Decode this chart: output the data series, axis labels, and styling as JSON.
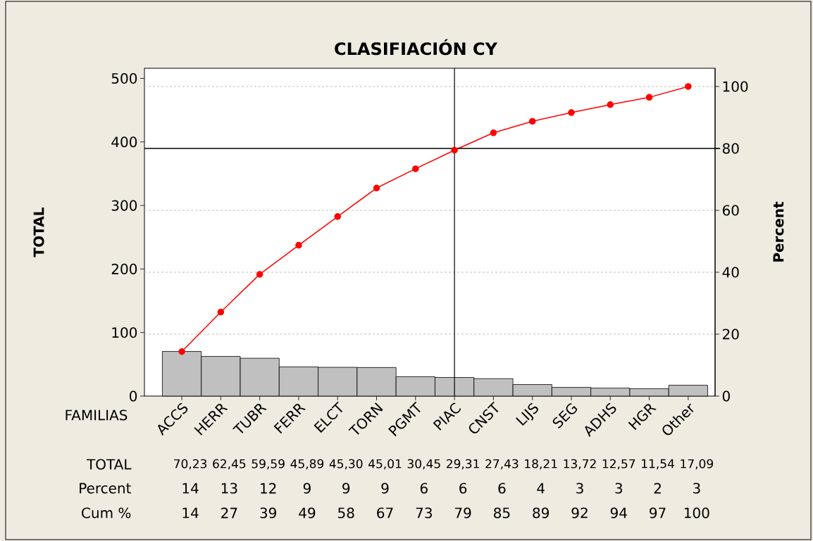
{
  "chart_data": {
    "type": "bar",
    "title": "CLASIFIACIÓN CY",
    "xlabel": "FAMILIAS",
    "ylabel": "TOTAL",
    "y2label": "Percent",
    "categories": [
      "ACCS",
      "HERR",
      "TUBR",
      "FERR",
      "ELCT",
      "TORN",
      "PGMT",
      "PIAC",
      "CNST",
      "LIJS",
      "SEG",
      "ADHS",
      "HGR",
      "Other"
    ],
    "series": [
      {
        "color": "#c0c0c0",
        "values": [
          70.23,
          62.45,
          59.59,
          45.89,
          45.3,
          45.01,
          30.45,
          29.31,
          27.43,
          18.21,
          13.72,
          12.57,
          11.54,
          17.09
        ],
        "value_labels": [
          "70,23",
          "62,45",
          "59,59",
          "45,89",
          "45,30",
          "45,01",
          "30,45",
          "29,31",
          "27,43",
          "18,21",
          "13,72",
          "12,57",
          "11,54",
          "17,09"
        ]
      },
      {
        "type": "line",
        "axis": "y2",
        "color": "#ff0000",
        "marker": "circle",
        "values": [
          14.37,
          27.14,
          39.34,
          48.73,
          57.99,
          67.2,
          73.43,
          79.43,
          85.04,
          88.76,
          91.57,
          94.14,
          96.5,
          100
        ],
        "value_labels": [
          "14",
          "27",
          "39",
          "49",
          "58",
          "67",
          "73",
          "79",
          "85",
          "89",
          "92",
          "94",
          "97",
          "100"
        ]
      }
    ],
    "ylim": [
      0,
      516
    ],
    "yticks": [
      0,
      100,
      200,
      300,
      400,
      500
    ],
    "y2lim": [
      0,
      105.9
    ],
    "y2ticks": [
      0,
      20,
      40,
      60,
      80,
      100
    ],
    "grid": "y",
    "ref_lines": [
      {
        "axis": "y2",
        "value": 80,
        "color": "#000000"
      },
      {
        "axis": "x",
        "value": "PIAC",
        "color": "#000000"
      }
    ],
    "annotations": [
      "TOTAL",
      "Percent",
      "Cum %",
      "14",
      "13",
      "12",
      "9",
      "9",
      "9",
      "6",
      "6",
      "6",
      "4",
      "3",
      "3",
      "2",
      "3"
    ]
  }
}
